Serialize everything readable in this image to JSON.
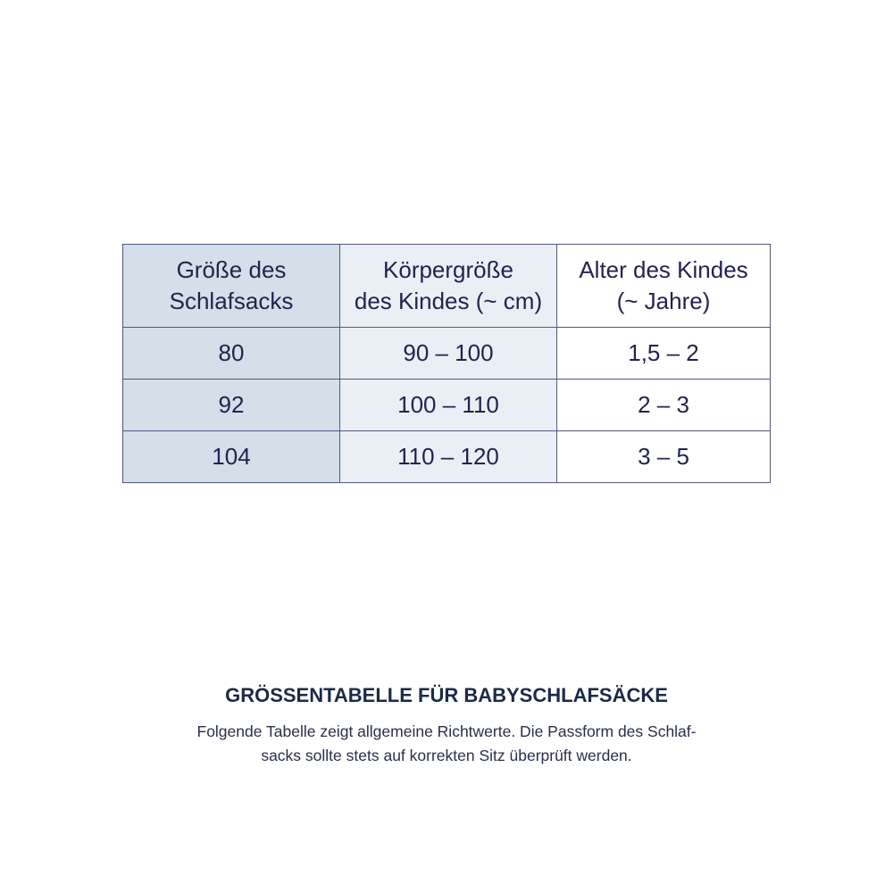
{
  "table": {
    "headers": [
      [
        "Größe des",
        "Schlafsacks"
      ],
      [
        "Körpergröße",
        "des Kindes (~ cm)"
      ],
      [
        "Alter des Kindes",
        "(~ Jahre)"
      ]
    ],
    "rows": [
      [
        "80",
        "90 – 100",
        "1,5 – 2"
      ],
      [
        "92",
        "100 – 110",
        "2 – 3"
      ],
      [
        "104",
        "110 – 120",
        "3 – 5"
      ]
    ]
  },
  "caption": {
    "title": "GRÖSSENTABELLE FÜR BABYSCHLAFSÄCKE",
    "line1": "Folgende Tabelle zeigt allgemeine Richtwerte. Die Passform des Schlaf-",
    "line2": "sacks sollte stets auf korrekten Sitz überprüft werden."
  },
  "colors": {
    "col1": "#d4dfe9",
    "col2": "#eaeff5",
    "border": "#55557f",
    "text": "#23234f"
  }
}
